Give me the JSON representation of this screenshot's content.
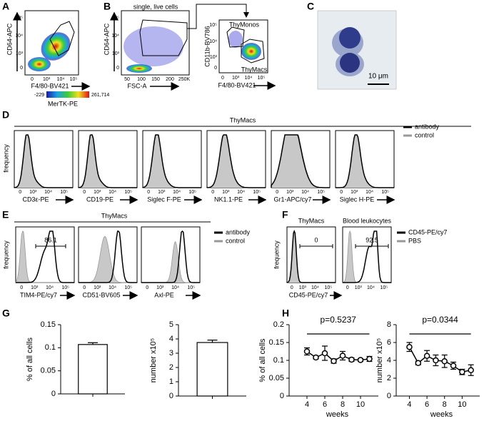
{
  "letters": [
    "A",
    "B",
    "C",
    "D",
    "E",
    "F",
    "G",
    "H"
  ],
  "a": {
    "y_label": "CD64-APC",
    "x_label": "F4/80-BV421",
    "scale_label": "MerTK-PE",
    "scale_min": "-229",
    "scale_max": "261,714",
    "x_ticks": [
      "0",
      "10³",
      "10⁴",
      "10⁵"
    ],
    "y_ticks": [
      "0",
      "10³",
      "10⁴",
      "10⁵"
    ]
  },
  "b": {
    "title": "single, live cells",
    "y_label": "CD64-APC",
    "x_label": "FSC-A",
    "x_ticks": [
      "50",
      "100",
      "150",
      "200",
      "250K"
    ],
    "y_ticks": [
      "0",
      "10³",
      "10⁴",
      "10⁵"
    ],
    "gate_y_label": "CD11b-BV786",
    "gate_x_label": "F4/80-BV421",
    "gate_x_ticks": [
      "0",
      "10³",
      "10⁴",
      "10⁵"
    ],
    "gate_y_ticks": [
      "0",
      "10³",
      "10⁴",
      "10⁵"
    ],
    "populations": [
      "ThyMonos",
      "ThyMacs"
    ]
  },
  "c": {
    "scale_bar": "10 μm"
  },
  "d": {
    "header": "ThyMacs",
    "y_label": "frequency",
    "x_ticks": [
      "0",
      "10³",
      "10⁴",
      "10⁵"
    ],
    "markers": [
      "CD3ε-PE",
      "CD19-PE",
      "Siglec F-PE",
      "NK1.1-PE",
      "Gr1-APC/cy7",
      "Siglec H-PE"
    ],
    "legend": [
      "antibody",
      "control"
    ]
  },
  "e": {
    "header": "ThyMacs",
    "y_label": "frequency",
    "gate_value": "86.1",
    "x_ticks": [
      "0",
      "10³",
      "10⁴",
      "10⁵"
    ],
    "markers": [
      "TIM4-PE/cy7",
      "CD51-BV605",
      "Axl-PE"
    ],
    "legend": [
      "antibody",
      "control"
    ]
  },
  "f": {
    "titles": [
      "ThyMacs",
      "Blood leukocytes"
    ],
    "gate_values": [
      "0",
      "92.5"
    ],
    "y_label": "frequency",
    "x_label": "CD45-PE/cy7",
    "x_ticks": [
      "0",
      "10³",
      "10⁴",
      "10⁵"
    ],
    "legend": [
      "CD45-PE/cy7",
      "PBS"
    ]
  },
  "chart_data": [
    {
      "type": "bar",
      "y_label": "% of all cells",
      "categories": [
        null
      ],
      "values": [
        0.107
      ],
      "errors": [
        0.004
      ],
      "ylim": [
        0,
        0.15
      ],
      "yticks": [
        0,
        0.05,
        0.1,
        0.15
      ],
      "color": "#ffffff"
    },
    {
      "type": "bar",
      "y_label": "number x10⁵",
      "categories": [
        null
      ],
      "values": [
        3.75
      ],
      "errors": [
        0.17
      ],
      "ylim": [
        0,
        5
      ],
      "yticks": [
        0,
        1,
        2,
        3,
        4,
        5
      ],
      "color": "#ffffff"
    },
    {
      "type": "line",
      "y_label": "% of all cells",
      "x_label": "weeks",
      "annotation": "p=0.5237",
      "x": [
        4,
        5,
        6,
        7,
        8,
        9,
        10,
        11
      ],
      "values": [
        0.125,
        0.108,
        0.12,
        0.098,
        0.113,
        0.102,
        0.101,
        0.104
      ],
      "errors": [
        0.01,
        0.004,
        0.02,
        0.006,
        0.012,
        0.005,
        0.004,
        0.007
      ],
      "xlim": [
        2,
        12
      ],
      "xticks": [
        4,
        6,
        8,
        10
      ],
      "ylim": [
        0,
        0.2
      ],
      "yticks": [
        0,
        0.05,
        0.1,
        0.15,
        0.2
      ],
      "color": "#000000"
    },
    {
      "type": "line",
      "y_label": "number x10⁵",
      "x_label": "weeks",
      "annotation": "p=0.0344",
      "x": [
        4,
        5,
        6,
        7,
        8,
        9,
        10,
        11
      ],
      "values": [
        5.5,
        3.7,
        4.5,
        4.0,
        3.9,
        3.4,
        2.7,
        2.9
      ],
      "errors": [
        0.5,
        0.2,
        0.6,
        0.6,
        0.7,
        0.4,
        0.3,
        0.6
      ],
      "xlim": [
        2.5,
        12
      ],
      "xticks": [
        4,
        6,
        8,
        10
      ],
      "ylim": [
        0,
        8
      ],
      "yticks": [
        0,
        2,
        4,
        6,
        8
      ],
      "color": "#000000"
    }
  ]
}
